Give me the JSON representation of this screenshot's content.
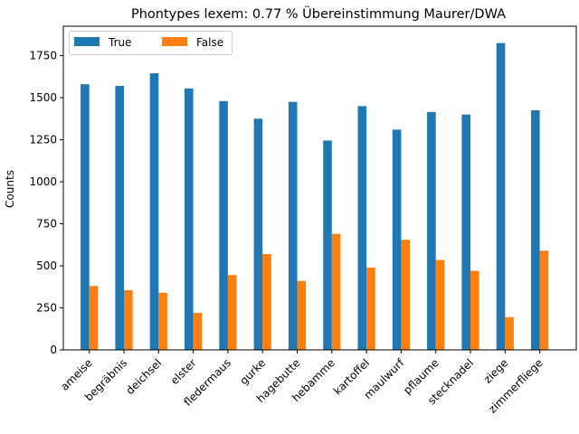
{
  "chart_data": {
    "type": "bar",
    "title": "Phontypes lexem: 0.77 % Übereinstimmung Maurer/DWA",
    "xlabel": "",
    "ylabel": "Counts",
    "ylim": [
      0,
      1925
    ],
    "yticks": [
      0,
      250,
      500,
      750,
      1000,
      1250,
      1500,
      1750
    ],
    "grid": false,
    "legend_position": "top-left",
    "categories": [
      "ameise",
      "begräbnis",
      "deichsel",
      "elster",
      "fledermaus",
      "gurke",
      "hagebutte",
      "hebamme",
      "kartoffel",
      "maulwurf",
      "pflaume",
      "stecknadel",
      "ziege",
      "zimmerfliege"
    ],
    "series": [
      {
        "name": "True",
        "color": "#1f77b4",
        "values": [
          1580,
          1570,
          1645,
          1555,
          1480,
          1375,
          1475,
          1245,
          1450,
          1310,
          1415,
          1400,
          1825,
          1425
        ]
      },
      {
        "name": "False",
        "color": "#ff7f0e",
        "values": [
          380,
          355,
          340,
          220,
          445,
          570,
          410,
          690,
          490,
          655,
          535,
          470,
          195,
          590
        ]
      }
    ]
  }
}
